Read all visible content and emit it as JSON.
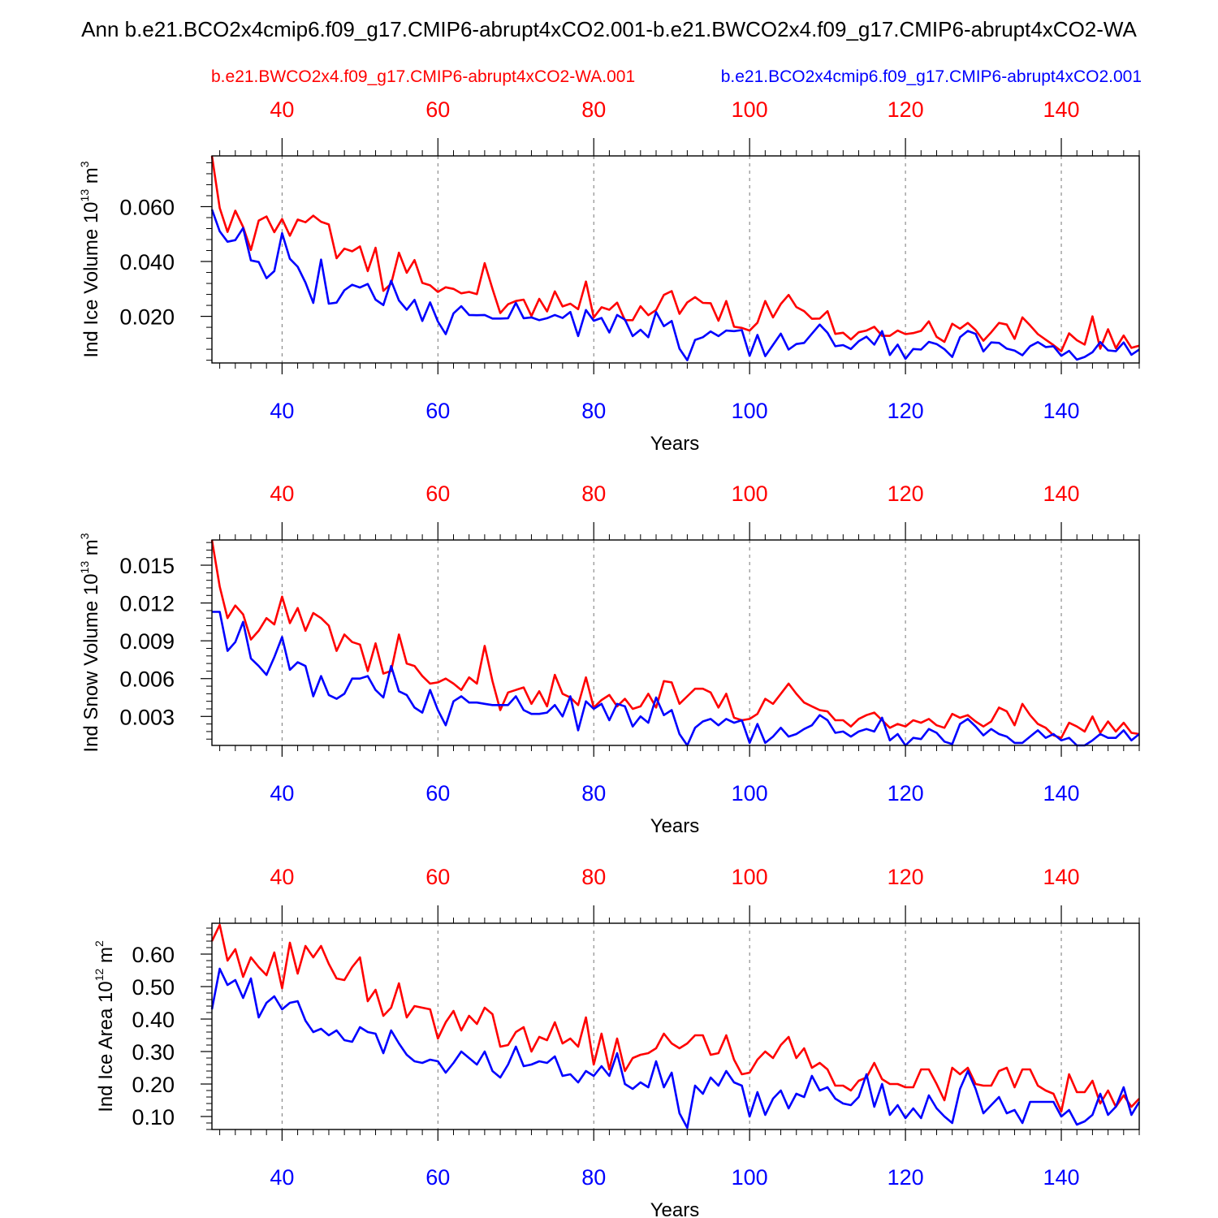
{
  "title": "Ann b.e21.BCO2x4cmip6.f09_g17.CMIP6-abrupt4xCO2.001-b.e21.BWCO2x4.f09_g17.CMIP6-abrupt4xCO2-WA",
  "colors": {
    "run_a": "#ff0000",
    "run_b": "#0000ff",
    "axis": "#000000",
    "grid": "#777777"
  },
  "chart_data": [
    {
      "type": "line",
      "panel": "Ind Ice Volume",
      "ylabel": {
        "text": "Ind Ice Volume 10",
        "exp": "13",
        "unit": " m",
        "unit_exp": "3"
      },
      "xlabel": "Years",
      "xlim": [
        31,
        150
      ],
      "ylim": [
        0.003,
        0.0785
      ],
      "yticks": [
        0.02,
        0.04,
        0.06
      ],
      "yticklabels": [
        "0.020",
        "0.040",
        "0.060"
      ],
      "yminor": 0.004,
      "xticks": [
        40,
        60,
        80,
        100,
        120,
        140
      ],
      "xticklabels_top": [
        "40",
        "60",
        "80",
        "100",
        "120",
        "140"
      ],
      "xticklabels_bottom": [
        "40",
        "60",
        "80",
        "100",
        "120",
        "140"
      ],
      "series": [
        {
          "name": "b.e21.BWCO2x4.f09_g17.CMIP6-abrupt4xCO2-WA.001",
          "color": "red",
          "x_start": 31,
          "values": [
            0.0785,
            0.0595,
            0.0508,
            0.0585,
            0.0526,
            0.0442,
            0.0549,
            0.0564,
            0.0507,
            0.0555,
            0.0494,
            0.0553,
            0.0543,
            0.0567,
            0.0545,
            0.0535,
            0.0412,
            0.0447,
            0.0437,
            0.0455,
            0.0365,
            0.045,
            0.0293,
            0.0319,
            0.0432,
            0.0359,
            0.0405,
            0.0322,
            0.0313,
            0.0289,
            0.0306,
            0.03,
            0.0284,
            0.0289,
            0.0281,
            0.0394,
            0.03,
            0.0212,
            0.0244,
            0.0256,
            0.0261,
            0.0201,
            0.0264,
            0.0218,
            0.0291,
            0.0236,
            0.0246,
            0.0226,
            0.0327,
            0.0196,
            0.0233,
            0.0224,
            0.025,
            0.0186,
            0.0186,
            0.0237,
            0.0204,
            0.0223,
            0.0278,
            0.0292,
            0.0209,
            0.0251,
            0.027,
            0.0249,
            0.0248,
            0.0184,
            0.0256,
            0.0162,
            0.0158,
            0.0148,
            0.0177,
            0.0256,
            0.0196,
            0.0245,
            0.0278,
            0.0234,
            0.0219,
            0.0191,
            0.0192,
            0.0219,
            0.0136,
            0.014,
            0.0116,
            0.0142,
            0.0148,
            0.0162,
            0.0129,
            0.0129,
            0.0148,
            0.0135,
            0.0139,
            0.0147,
            0.0182,
            0.0125,
            0.0107,
            0.0173,
            0.0155,
            0.0176,
            0.015,
            0.0111,
            0.0142,
            0.0176,
            0.017,
            0.0118,
            0.0196,
            0.0167,
            0.0135,
            0.0115,
            0.0095,
            0.0073,
            0.0138,
            0.0113,
            0.0097,
            0.02,
            0.0082,
            0.0153,
            0.0084,
            0.013,
            0.0085,
            0.0093
          ]
        },
        {
          "name": "b.e21.BCO2x4cmip6.f09_g17.CMIP6-abrupt4xCO2.001",
          "color": "blue",
          "x_start": 31,
          "values": [
            0.059,
            0.051,
            0.0472,
            0.0478,
            0.0522,
            0.0404,
            0.0398,
            0.0339,
            0.0365,
            0.0503,
            0.041,
            0.0381,
            0.0323,
            0.0249,
            0.0407,
            0.0246,
            0.025,
            0.0295,
            0.0315,
            0.0305,
            0.0318,
            0.0261,
            0.0241,
            0.033,
            0.0258,
            0.0224,
            0.026,
            0.0183,
            0.0251,
            0.0181,
            0.0135,
            0.0211,
            0.0237,
            0.0205,
            0.0204,
            0.0205,
            0.0192,
            0.0192,
            0.0193,
            0.0249,
            0.0193,
            0.0196,
            0.0186,
            0.0193,
            0.0205,
            0.0194,
            0.0216,
            0.0128,
            0.0223,
            0.0184,
            0.0194,
            0.0141,
            0.0205,
            0.0188,
            0.0128,
            0.0151,
            0.0124,
            0.0216,
            0.0164,
            0.0183,
            0.0082,
            0.004,
            0.0114,
            0.0124,
            0.0145,
            0.0128,
            0.0148,
            0.0146,
            0.015,
            0.0056,
            0.0132,
            0.0055,
            0.0096,
            0.0137,
            0.0079,
            0.0099,
            0.0103,
            0.0137,
            0.017,
            0.014,
            0.0091,
            0.0095,
            0.0081,
            0.0109,
            0.0126,
            0.0097,
            0.0146,
            0.0059,
            0.0097,
            0.0045,
            0.0081,
            0.0079,
            0.0107,
            0.0099,
            0.008,
            0.0052,
            0.0124,
            0.0147,
            0.0136,
            0.0072,
            0.0105,
            0.0103,
            0.0082,
            0.0075,
            0.0058,
            0.0091,
            0.0106,
            0.0088,
            0.0091,
            0.0056,
            0.0074,
            0.0042,
            0.0052,
            0.0069,
            0.0106,
            0.0076,
            0.0073,
            0.0105,
            0.006,
            0.0079
          ]
        }
      ]
    },
    {
      "type": "line",
      "panel": "Ind Snow Volume",
      "ylabel": {
        "text": "Ind Snow Volume 10",
        "exp": "13",
        "unit": " m",
        "unit_exp": "3"
      },
      "xlabel": "Years",
      "xlim": [
        31,
        150
      ],
      "ylim": [
        0.0007,
        0.017
      ],
      "yticks": [
        0.003,
        0.006,
        0.009,
        0.012,
        0.015
      ],
      "yticklabels": [
        "0.003",
        "0.006",
        "0.009",
        "0.012",
        "0.015"
      ],
      "yminor": 0.0006,
      "xticks": [
        40,
        60,
        80,
        100,
        120,
        140
      ],
      "xticklabels_top": [
        "40",
        "60",
        "80",
        "100",
        "120",
        "140"
      ],
      "xticklabels_bottom": [
        "40",
        "60",
        "80",
        "100",
        "120",
        "140"
      ],
      "series": [
        {
          "name": "b.e21.BWCO2x4.f09_g17.CMIP6-abrupt4xCO2-WA.001",
          "color": "red",
          "x_start": 31,
          "values": [
            0.017,
            0.0133,
            0.0108,
            0.0118,
            0.0111,
            0.0091,
            0.0098,
            0.0108,
            0.0103,
            0.0125,
            0.0104,
            0.0116,
            0.0098,
            0.0112,
            0.0108,
            0.0102,
            0.0082,
            0.0095,
            0.0089,
            0.0087,
            0.0066,
            0.0088,
            0.0064,
            0.0066,
            0.0095,
            0.0072,
            0.007,
            0.0062,
            0.0056,
            0.0057,
            0.006,
            0.0056,
            0.0051,
            0.0061,
            0.0056,
            0.0086,
            0.0058,
            0.0035,
            0.0049,
            0.0051,
            0.0053,
            0.004,
            0.005,
            0.0038,
            0.0063,
            0.0048,
            0.0045,
            0.0039,
            0.0061,
            0.0037,
            0.0043,
            0.0047,
            0.0038,
            0.0044,
            0.0036,
            0.0038,
            0.0048,
            0.0037,
            0.0058,
            0.0057,
            0.004,
            0.0046,
            0.0052,
            0.0052,
            0.0049,
            0.0037,
            0.0048,
            0.0029,
            0.0027,
            0.0028,
            0.0032,
            0.0044,
            0.004,
            0.0048,
            0.0056,
            0.0048,
            0.0041,
            0.0038,
            0.0035,
            0.0034,
            0.0027,
            0.0027,
            0.0022,
            0.0028,
            0.0031,
            0.0033,
            0.0027,
            0.0021,
            0.0024,
            0.0022,
            0.0027,
            0.0025,
            0.0028,
            0.0023,
            0.0021,
            0.0032,
            0.0029,
            0.0031,
            0.0026,
            0.0022,
            0.0026,
            0.0037,
            0.0034,
            0.0023,
            0.004,
            0.0031,
            0.0024,
            0.0021,
            0.0015,
            0.0013,
            0.0025,
            0.0022,
            0.0018,
            0.003,
            0.0017,
            0.0026,
            0.0018,
            0.0025,
            0.0017,
            0.0016
          ]
        },
        {
          "name": "b.e21.BCO2x4cmip6.f09_g17.CMIP6-abrupt4xCO2.001",
          "color": "blue",
          "x_start": 31,
          "values": [
            0.0113,
            0.0113,
            0.0082,
            0.0089,
            0.0105,
            0.0076,
            0.007,
            0.0063,
            0.0077,
            0.0093,
            0.0067,
            0.0073,
            0.007,
            0.0046,
            0.0062,
            0.0047,
            0.0044,
            0.0048,
            0.006,
            0.006,
            0.0062,
            0.0051,
            0.0045,
            0.007,
            0.005,
            0.0047,
            0.0037,
            0.0033,
            0.0051,
            0.0035,
            0.0023,
            0.0042,
            0.0046,
            0.0041,
            0.0041,
            0.004,
            0.0039,
            0.0039,
            0.0039,
            0.0046,
            0.0035,
            0.0032,
            0.0032,
            0.0033,
            0.0039,
            0.003,
            0.0046,
            0.0019,
            0.0042,
            0.0036,
            0.004,
            0.0027,
            0.004,
            0.0038,
            0.0022,
            0.003,
            0.0025,
            0.0045,
            0.0031,
            0.0035,
            0.0016,
            0.0007,
            0.0021,
            0.0026,
            0.0028,
            0.0023,
            0.0028,
            0.0025,
            0.0027,
            0.0009,
            0.0024,
            0.0009,
            0.0014,
            0.0021,
            0.0014,
            0.0016,
            0.002,
            0.0023,
            0.0031,
            0.0027,
            0.0017,
            0.0018,
            0.0014,
            0.0018,
            0.002,
            0.0018,
            0.0029,
            0.0011,
            0.0016,
            0.0007,
            0.0013,
            0.0012,
            0.002,
            0.0017,
            0.001,
            0.0008,
            0.0024,
            0.0028,
            0.0022,
            0.0015,
            0.002,
            0.0016,
            0.0014,
            0.0009,
            0.0009,
            0.0014,
            0.0019,
            0.0013,
            0.0016,
            0.0011,
            0.0013,
            0.0007,
            0.0007,
            0.0011,
            0.0016,
            0.0013,
            0.0013,
            0.0019,
            0.0011,
            0.0016
          ]
        }
      ]
    },
    {
      "type": "line",
      "panel": "Ind Ice Area",
      "ylabel": {
        "text": "Ind Ice Area 10",
        "exp": "12",
        "unit": " m",
        "unit_exp": "2"
      },
      "xlabel": "Years",
      "xlim": [
        31,
        150
      ],
      "ylim": [
        0.06,
        0.695
      ],
      "yticks": [
        0.1,
        0.2,
        0.3,
        0.4,
        0.5,
        0.6
      ],
      "yticklabels": [
        "0.10",
        "0.20",
        "0.30",
        "0.40",
        "0.50",
        "0.60"
      ],
      "yminor": 0.02,
      "xticks": [
        40,
        60,
        80,
        100,
        120,
        140
      ],
      "xticklabels_top": [
        "40",
        "60",
        "80",
        "100",
        "120",
        "140"
      ],
      "xticklabels_bottom": [
        "40",
        "60",
        "80",
        "100",
        "120",
        "140"
      ],
      "series": [
        {
          "name": "b.e21.BWCO2x4.f09_g17.CMIP6-abrupt4xCO2-WA.001",
          "color": "red",
          "x_start": 31,
          "values": [
            0.64,
            0.69,
            0.58,
            0.615,
            0.53,
            0.59,
            0.56,
            0.535,
            0.605,
            0.495,
            0.635,
            0.54,
            0.625,
            0.59,
            0.625,
            0.57,
            0.525,
            0.52,
            0.56,
            0.59,
            0.455,
            0.49,
            0.41,
            0.435,
            0.51,
            0.405,
            0.44,
            0.435,
            0.43,
            0.34,
            0.39,
            0.425,
            0.365,
            0.41,
            0.385,
            0.435,
            0.415,
            0.315,
            0.32,
            0.36,
            0.375,
            0.3,
            0.345,
            0.335,
            0.39,
            0.325,
            0.34,
            0.315,
            0.405,
            0.26,
            0.355,
            0.245,
            0.34,
            0.24,
            0.28,
            0.29,
            0.295,
            0.31,
            0.355,
            0.325,
            0.31,
            0.325,
            0.35,
            0.35,
            0.29,
            0.295,
            0.35,
            0.275,
            0.23,
            0.235,
            0.275,
            0.3,
            0.28,
            0.32,
            0.345,
            0.28,
            0.31,
            0.25,
            0.265,
            0.245,
            0.195,
            0.195,
            0.18,
            0.21,
            0.22,
            0.265,
            0.215,
            0.2,
            0.2,
            0.19,
            0.19,
            0.245,
            0.245,
            0.2,
            0.15,
            0.25,
            0.23,
            0.25,
            0.2,
            0.195,
            0.195,
            0.24,
            0.25,
            0.19,
            0.245,
            0.245,
            0.195,
            0.18,
            0.17,
            0.115,
            0.23,
            0.175,
            0.175,
            0.21,
            0.14,
            0.18,
            0.13,
            0.165,
            0.13,
            0.155
          ]
        },
        {
          "name": "b.e21.BCO2x4cmip6.f09_g17.CMIP6-abrupt4xCO2.001",
          "color": "blue",
          "x_start": 31,
          "values": [
            0.43,
            0.555,
            0.505,
            0.52,
            0.465,
            0.525,
            0.405,
            0.45,
            0.47,
            0.43,
            0.45,
            0.455,
            0.395,
            0.36,
            0.37,
            0.35,
            0.365,
            0.335,
            0.33,
            0.375,
            0.36,
            0.355,
            0.295,
            0.365,
            0.325,
            0.29,
            0.27,
            0.265,
            0.275,
            0.27,
            0.235,
            0.265,
            0.3,
            0.28,
            0.26,
            0.3,
            0.24,
            0.22,
            0.26,
            0.315,
            0.255,
            0.26,
            0.27,
            0.265,
            0.285,
            0.225,
            0.23,
            0.205,
            0.24,
            0.225,
            0.255,
            0.225,
            0.295,
            0.2,
            0.185,
            0.205,
            0.19,
            0.27,
            0.19,
            0.235,
            0.11,
            0.065,
            0.195,
            0.17,
            0.22,
            0.195,
            0.24,
            0.205,
            0.195,
            0.1,
            0.175,
            0.105,
            0.155,
            0.18,
            0.125,
            0.17,
            0.16,
            0.225,
            0.18,
            0.19,
            0.155,
            0.14,
            0.135,
            0.16,
            0.23,
            0.13,
            0.2,
            0.105,
            0.135,
            0.095,
            0.125,
            0.095,
            0.165,
            0.125,
            0.1,
            0.08,
            0.185,
            0.24,
            0.185,
            0.11,
            0.135,
            0.16,
            0.11,
            0.12,
            0.08,
            0.145,
            0.145,
            0.145,
            0.145,
            0.1,
            0.12,
            0.075,
            0.085,
            0.105,
            0.17,
            0.105,
            0.13,
            0.19,
            0.105,
            0.145
          ]
        }
      ]
    }
  ]
}
